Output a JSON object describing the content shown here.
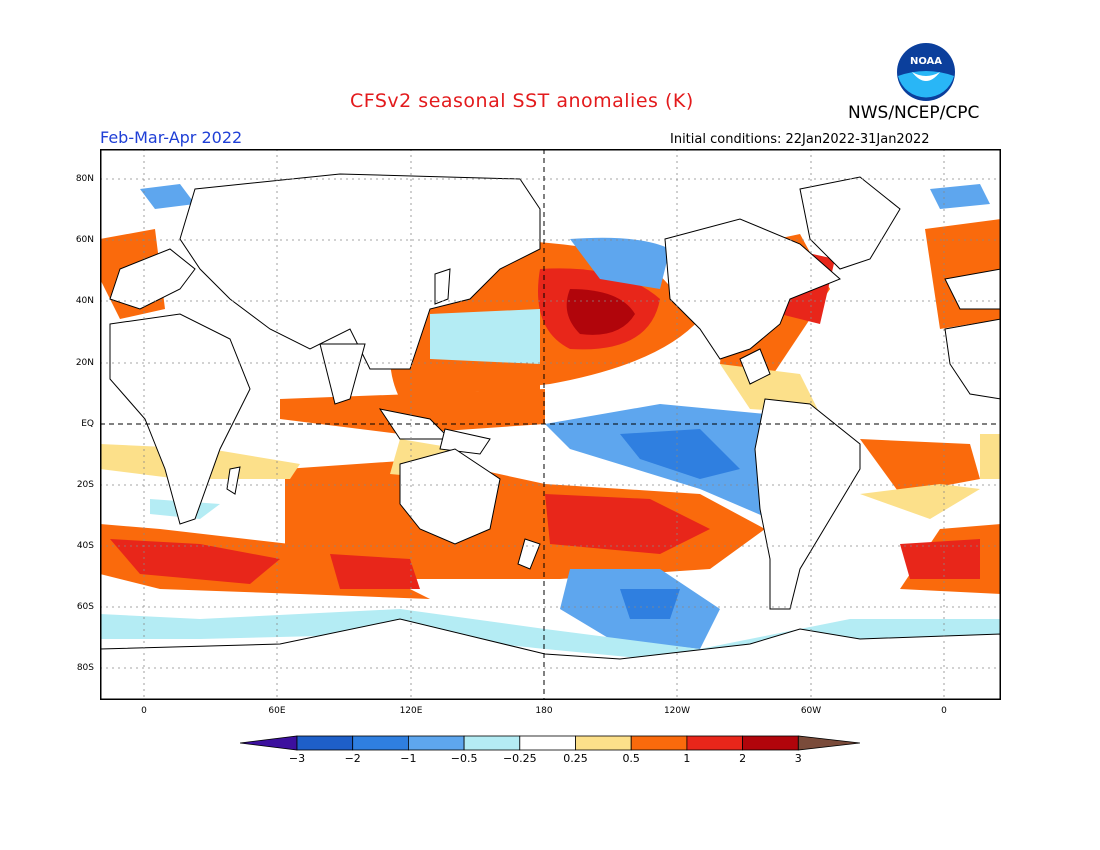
{
  "header": {
    "title": "CFSv2 seasonal SST anomalies (K)",
    "agency": "NWS/NCEP/CPC",
    "period": "Feb-Mar-Apr 2022",
    "initial_conditions": "Initial conditions: 22Jan2022-31Jan2022",
    "logo_text": "NOAA"
  },
  "axes": {
    "lat_labels": [
      "80N",
      "60N",
      "40N",
      "20N",
      "EQ",
      "20S",
      "40S",
      "60S",
      "80S"
    ],
    "lon_labels": [
      "0",
      "60E",
      "120E",
      "180",
      "120W",
      "60W",
      "0"
    ]
  },
  "colorbar": {
    "labels": [
      "-3",
      "-2",
      "-1",
      "-0.5",
      "-0.25",
      "0.25",
      "0.5",
      "1",
      "2",
      "3"
    ],
    "colors": [
      "#3c109e",
      "#1e5fc8",
      "#2f7fe0",
      "#5ea6ee",
      "#b4ecf4",
      "#ffffff",
      "#fce08a",
      "#fa6a0c",
      "#e8261a",
      "#b1050b",
      "#7a4b3a"
    ]
  }
}
